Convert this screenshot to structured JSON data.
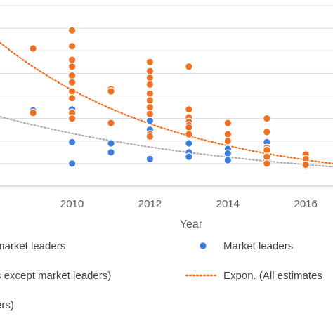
{
  "chart_data": {
    "type": "scatter",
    "xlabel": "Year",
    "x_ticks": [
      "2010",
      "2012",
      "2014",
      "2016"
    ],
    "xlim": [
      2008.15,
      2016.7
    ],
    "ylim": [
      0,
      8
    ],
    "grid": true,
    "legend_placement": "bottom",
    "series": [
      {
        "name": "Market leaders",
        "kind": "points",
        "color": "#3b7ddd",
        "points": [
          [
            2009,
            3.35
          ],
          [
            2010,
            3.4
          ],
          [
            2010,
            1.95
          ],
          [
            2010,
            1.0
          ],
          [
            2011,
            1.9
          ],
          [
            2011,
            1.5
          ],
          [
            2012,
            2.9
          ],
          [
            2012,
            2.5
          ],
          [
            2012,
            1.2
          ],
          [
            2013,
            1.9
          ],
          [
            2013,
            1.5
          ],
          [
            2013,
            1.3
          ],
          [
            2014,
            1.65
          ],
          [
            2014,
            1.45
          ],
          [
            2014,
            1.15
          ],
          [
            2015,
            1.95
          ],
          [
            2015,
            1.15
          ],
          [
            2016,
            0.9
          ]
        ]
      },
      {
        "name": "(All estimates except market leaders)",
        "kind": "points",
        "color": "#ed7023",
        "points": [
          [
            2009,
            6.1
          ],
          [
            2009,
            3.25
          ],
          [
            2010,
            6.9
          ],
          [
            2010,
            6.2
          ],
          [
            2010,
            5.6
          ],
          [
            2010,
            5.3
          ],
          [
            2010,
            4.9
          ],
          [
            2010,
            4.6
          ],
          [
            2010,
            4.2
          ],
          [
            2010,
            3.9
          ],
          [
            2010,
            3.25
          ],
          [
            2010,
            3.0
          ],
          [
            2011,
            4.3
          ],
          [
            2011,
            4.2
          ],
          [
            2011,
            2.8
          ],
          [
            2012,
            5.5
          ],
          [
            2012,
            5.1
          ],
          [
            2012,
            4.8
          ],
          [
            2012,
            4.5
          ],
          [
            2012,
            4.1
          ],
          [
            2012,
            3.8
          ],
          [
            2012,
            3.5
          ],
          [
            2012,
            3.2
          ],
          [
            2012,
            2.3
          ],
          [
            2012,
            2.2
          ],
          [
            2013,
            5.3
          ],
          [
            2013,
            3.4
          ],
          [
            2013,
            3.05
          ],
          [
            2013,
            2.85
          ],
          [
            2013,
            2.7
          ],
          [
            2013,
            2.6
          ],
          [
            2013,
            2.3
          ],
          [
            2014,
            2.8
          ],
          [
            2014,
            2.3
          ],
          [
            2014,
            2.0
          ],
          [
            2015,
            3.0
          ],
          [
            2015,
            2.4
          ],
          [
            2015,
            1.7
          ],
          [
            2015,
            1.6
          ],
          [
            2015,
            1.3
          ],
          [
            2015,
            1.0
          ],
          [
            2016,
            1.4
          ],
          [
            2016,
            1.2
          ],
          [
            2016,
            0.95
          ]
        ]
      },
      {
        "name": "Expon. (All estimates",
        "kind": "trendline",
        "style": "dotted",
        "color": "#ed7023",
        "curve": [
          [
            2008.15,
            6.36
          ],
          [
            2016.7,
            1.0
          ]
        ]
      },
      {
        "kind": "trendline",
        "style": "dotted",
        "color": "#b0b0b0",
        "curve": [
          [
            2008.15,
            3.08
          ],
          [
            2016.7,
            0.86
          ]
        ]
      }
    ],
    "legend": [
      {
        "label": "market leaders",
        "marker": "none",
        "color": "#b0b0b0"
      },
      {
        "label": "Market leaders",
        "marker": "circle",
        "color": "#3b7ddd"
      },
      {
        "label": "s except market leaders)",
        "marker": "none",
        "color": "#ed7023"
      },
      {
        "label": "Expon. (All estimates",
        "marker": "dotted-line",
        "color": "#ed7023"
      },
      {
        "label": "ers)",
        "marker": "none",
        "color": "#b0b0b0"
      }
    ]
  }
}
